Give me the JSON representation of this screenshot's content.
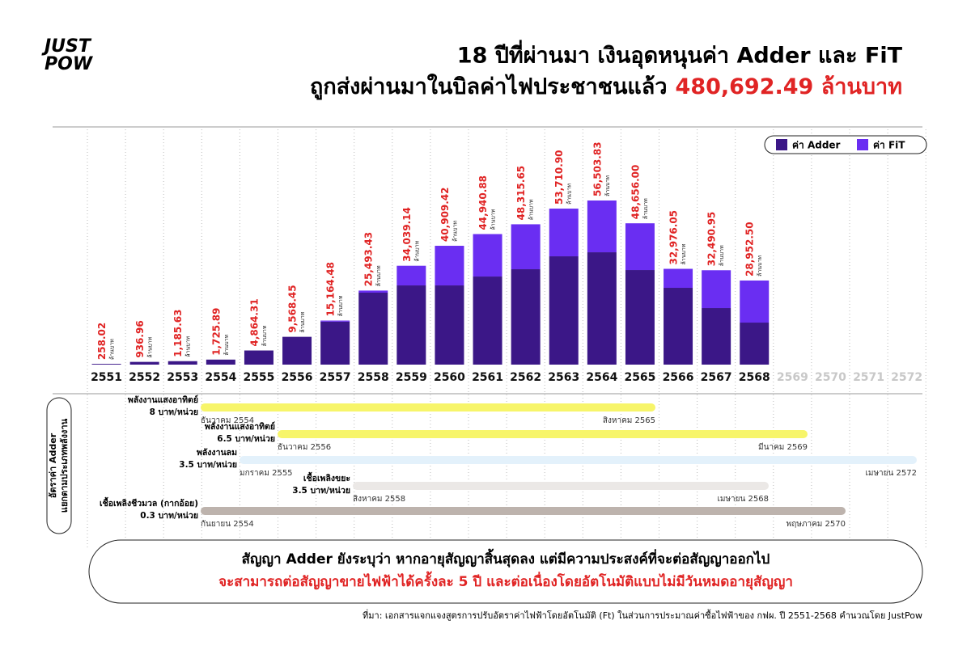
{
  "header": {
    "logo": [
      "JUST",
      "POW"
    ],
    "title": "18 ปีที่ผ่านมา เงินอุดหนุนค่า Adder และ FiT",
    "subtitle": "ถูกส่งผ่านมาในบิลค่าไฟประชาชนแล้ว",
    "subtitle_highlight": "480,692.49 ล้านบาท"
  },
  "chart_data": {
    "type": "bar",
    "stacked": true,
    "legend": "top-right",
    "categories": [
      "2551",
      "2552",
      "2553",
      "2554",
      "2555",
      "2556",
      "2557",
      "2558",
      "2559",
      "2560",
      "2561",
      "2562",
      "2563",
      "2564",
      "2565",
      "2566",
      "2567",
      "2568",
      "2569",
      "2570",
      "2571",
      "2572"
    ],
    "series": [
      {
        "name": "ค่า Adder",
        "color": "#3b1787",
        "values": [
          258.02,
          936.96,
          1185.63,
          1725.89,
          4864.31,
          9568.45,
          14800,
          24770,
          27270,
          27270,
          30330,
          32840,
          37290,
          38680,
          32560,
          26440,
          19480,
          14470,
          null,
          null,
          null,
          null
        ]
      },
      {
        "name": "ค่า FiT",
        "color": "#6a2ef2",
        "values": [
          0,
          0,
          0,
          0,
          0,
          0,
          364.48,
          723.43,
          6769.14,
          13639.42,
          14610.88,
          15475.65,
          16420.9,
          17823.83,
          16096,
          6536.05,
          13010.95,
          14482.5,
          null,
          null,
          null,
          null
        ]
      }
    ],
    "totals": {
      "values": [
        258.02,
        936.96,
        1185.63,
        1725.89,
        4864.31,
        9568.45,
        15164.48,
        25493.43,
        34039.14,
        40909.42,
        44940.88,
        48315.65,
        53710.9,
        56503.83,
        48656,
        32976.05,
        32490.95,
        28952.5,
        null,
        null,
        null,
        null
      ],
      "value_labels": [
        "258.02",
        "936.96",
        "1,185.63",
        "1,725.89",
        "4,864.31",
        "9,568.45",
        "15,164.48",
        "25,493.43",
        "34,039.14",
        "40,909.42",
        "44,940.88",
        "48,315.65",
        "53,710.90",
        "56,503.83",
        "48,656.00",
        "32,976.05",
        "32,490.95",
        "28,952.50",
        null,
        null,
        null,
        null
      ]
    },
    "unit_label": "ล้านบาท"
  },
  "timeline": {
    "title": [
      "อัตราค่า Adder",
      "แยกตามประเภทพลังงาน"
    ],
    "rows": [
      {
        "label": "พลังงานแสงอาทิตย์",
        "rate": "8 บาท/หน่วย",
        "start": "ธันวาคม 2554",
        "end": "สิงหาคม 2565",
        "color": "#f7f56a"
      },
      {
        "label": "พลังงานแสงอาทิตย์",
        "rate": "6.5 บาท/หน่วย",
        "start": "ธันวาคม 2556",
        "end": "มีนาคม 2569",
        "color": "#f7f56a"
      },
      {
        "label": "พลังงานลม",
        "rate": "3.5 บาท/หน่วย",
        "start": "มกราคม 2555",
        "end": "เมษายน 2572",
        "color": "#e3f1fb"
      },
      {
        "label": "เชื้อเพลิงขยะ",
        "rate": "3.5 บาท/หน่วย",
        "start": "สิงหาคม 2558",
        "end": "เมษายน 2568",
        "color": "#ebe8e6"
      },
      {
        "label": "เชื้อเพลิงชีวมวล (กากอ้อย)",
        "rate": "0.3 บาท/หน่วย",
        "start": "กันยายน 2554",
        "end": "พฤษภาคม 2570",
        "color": "#bdb3ad"
      }
    ]
  },
  "note": {
    "line1": "สัญญา Adder ยังระบุว่า หากอายุสัญญาสิ้นสุดลง แต่มีความประสงค์ที่จะต่อสัญญาออกไป",
    "line2": "จะสามารถต่อสัญญาขายไฟฟ้าได้ครั้งละ 5 ปี และต่อเนื่องโดยอัตโนมัติแบบไม่มีวันหมดอายุสัญญา"
  },
  "source": "ที่มา: เอกสารแจกแจงสูตรการปรับอัตราค่าไฟฟ้าโดยอัตโนมัติ (Ft) ในส่วนการประมาณค่าซื้อไฟฟ้าของ กฟผ. ปี 2551-2568 คำนวณโดย JustPow"
}
